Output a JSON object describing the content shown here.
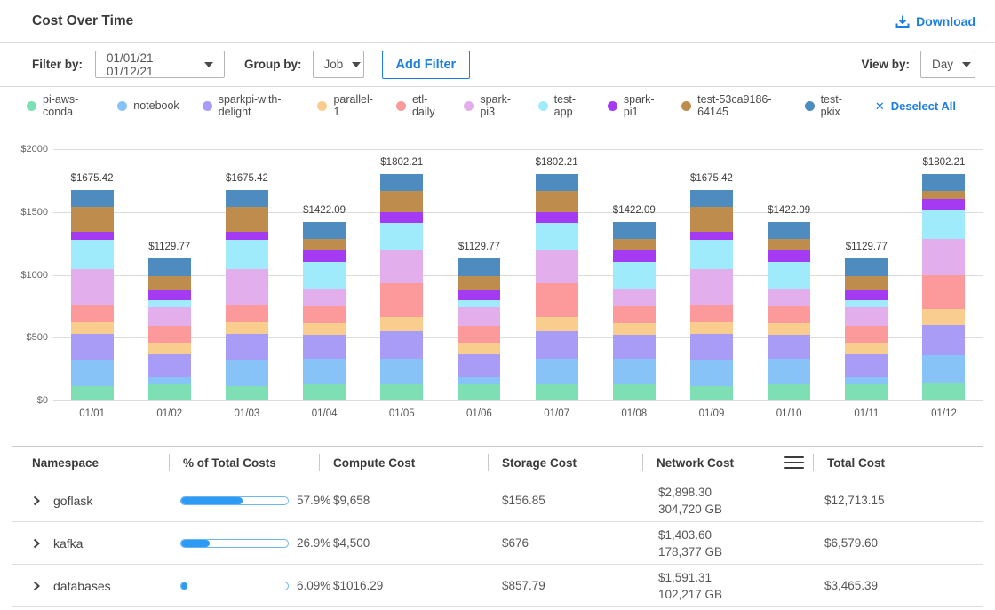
{
  "header": {
    "title": "Cost Over Time",
    "download_label": "Download"
  },
  "filters": {
    "filter_by_label": "Filter by:",
    "date_range_value": "01/01/21 - 01/12/21",
    "group_by_label": "Group by:",
    "group_by_value": "Job",
    "add_filter_label": "Add Filter",
    "view_by_label": "View by:",
    "view_by_value": "Day"
  },
  "legend": {
    "deselect_all_label": "Deselect All",
    "items": [
      {
        "label": "pi-aws-conda",
        "color": "#7fdfb4"
      },
      {
        "label": "notebook",
        "color": "#88c3f8"
      },
      {
        "label": "sparkpi-with-delight",
        "color": "#a89cf6"
      },
      {
        "label": "parallel-1",
        "color": "#f8cd8e"
      },
      {
        "label": "etl-daily",
        "color": "#fb999b"
      },
      {
        "label": "spark-pi3",
        "color": "#e2aeec"
      },
      {
        "label": "test-app",
        "color": "#a0ebfb"
      },
      {
        "label": "spark-pi1",
        "color": "#a43bf2"
      },
      {
        "label": "test-53ca9186-64145",
        "color": "#be8d4d"
      },
      {
        "label": "test-pkix",
        "color": "#4e8bbe"
      }
    ]
  },
  "chart_data": {
    "type": "bar",
    "stacked": true,
    "title": "Cost Over Time",
    "xlabel": "",
    "ylabel": "",
    "ylim": [
      0,
      2000
    ],
    "grid": true,
    "legend_position": "top",
    "y_ticks": [
      "$2000",
      "$1500",
      "$1000",
      "$500",
      "$0"
    ],
    "categories": [
      "01/01",
      "01/02",
      "01/03",
      "01/04",
      "01/05",
      "01/06",
      "01/07",
      "01/08",
      "01/09",
      "01/10",
      "01/11",
      "01/12"
    ],
    "bar_total_labels": [
      "$1675.42",
      "$1129.77",
      "$1675.42",
      "$1422.09",
      "$1802.21",
      "$1129.77",
      "$1802.21",
      "$1422.09",
      "$1675.42",
      "$1422.09",
      "$1129.77",
      "$1802.21"
    ],
    "bar_totals": [
      1675.42,
      1129.77,
      1675.42,
      1422.09,
      1802.21,
      1129.77,
      1802.21,
      1422.09,
      1675.42,
      1422.09,
      1129.77,
      1802.21
    ],
    "series": [
      {
        "name": "pi-aws-conda",
        "color": "#7fdfb4",
        "values": [
          113,
          137,
          113,
          128,
          129,
          137,
          129,
          128,
          113,
          128,
          137,
          142
        ]
      },
      {
        "name": "notebook",
        "color": "#88c3f8",
        "values": [
          210,
          50,
          210,
          208,
          204,
          50,
          204,
          208,
          210,
          208,
          50,
          222
        ]
      },
      {
        "name": "sparkpi-with-delight",
        "color": "#a89cf6",
        "values": [
          210,
          178,
          210,
          189,
          218,
          178,
          218,
          189,
          210,
          189,
          178,
          237
        ]
      },
      {
        "name": "parallel-1",
        "color": "#f8cd8e",
        "values": [
          86,
          93,
          86,
          93,
          110,
          93,
          110,
          93,
          86,
          93,
          93,
          127
        ]
      },
      {
        "name": "etl-daily",
        "color": "#fb999b",
        "values": [
          147,
          137,
          147,
          135,
          270,
          137,
          270,
          135,
          147,
          135,
          137,
          267
        ]
      },
      {
        "name": "spark-pi3",
        "color": "#e2aeec",
        "values": [
          283,
          145,
          283,
          135,
          266,
          145,
          266,
          135,
          283,
          135,
          145,
          288
        ]
      },
      {
        "name": "test-app",
        "color": "#a0ebfb",
        "values": [
          233,
          55,
          233,
          217,
          216,
          55,
          216,
          217,
          233,
          217,
          55,
          235
        ]
      },
      {
        "name": "spark-pi1",
        "color": "#a43bf2",
        "values": [
          61,
          83,
          61,
          89,
          82,
          83,
          82,
          89,
          61,
          89,
          83,
          84
        ]
      },
      {
        "name": "test-53ca9186-64145",
        "color": "#be8d4d",
        "values": [
          197,
          113,
          197,
          93,
          176,
          113,
          176,
          93,
          197,
          93,
          113,
          66
        ]
      },
      {
        "name": "test-pkix",
        "color": "#4e8bbe",
        "values": [
          135.42,
          138.77,
          135.42,
          135.09,
          131.21,
          138.77,
          131.21,
          135.09,
          135.42,
          135.09,
          138.77,
          134.21
        ]
      }
    ]
  },
  "table": {
    "columns": [
      "Namespace",
      "% of Total Costs",
      "Compute Cost",
      "Storage Cost",
      "Network  Cost",
      "Total Cost"
    ],
    "rows": [
      {
        "namespace": "goflask",
        "pct": 57.9,
        "pct_label": "57.9%",
        "compute": "$9,658",
        "storage": "$156.85",
        "network_cost": "$2,898.30",
        "network_gb": "304,720 GB",
        "total": "$12,713.15"
      },
      {
        "namespace": "kafka",
        "pct": 26.9,
        "pct_label": "26.9%",
        "compute": "$4,500",
        "storage": "$676",
        "network_cost": "$1,403.60",
        "network_gb": "178,377 GB",
        "total": "$6,579.60"
      },
      {
        "namespace": "databases",
        "pct": 6.09,
        "pct_label": "6.09%",
        "compute": "$1016.29",
        "storage": "$857.79",
        "network_cost": "$1,591.31",
        "network_gb": "102,217 GB",
        "total": "$3,465.39"
      }
    ]
  }
}
